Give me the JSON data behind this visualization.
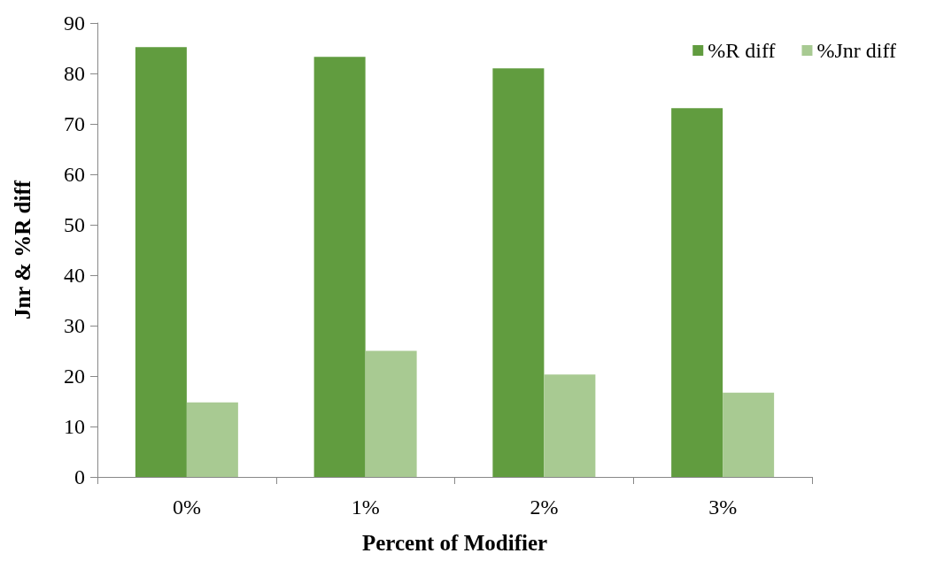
{
  "chart_data": {
    "type": "bar",
    "xlabel": "Percent of Modifier",
    "ylabel": "Jnr & %R diff",
    "categories": [
      "0%",
      "1%",
      "2%",
      "3%"
    ],
    "series": [
      {
        "name": "%R diff",
        "color": "#619c3f",
        "values": [
          85.2,
          83.3,
          81.0,
          73.1
        ]
      },
      {
        "name": "%Jnr diff",
        "color": "#a8ca92",
        "values": [
          14.8,
          25.0,
          20.3,
          16.7
        ]
      }
    ],
    "ylim": [
      0,
      90
    ],
    "yticks": [
      0,
      10,
      20,
      30,
      40,
      50,
      60,
      70,
      80,
      90
    ],
    "grid": false,
    "legend": "top right"
  }
}
